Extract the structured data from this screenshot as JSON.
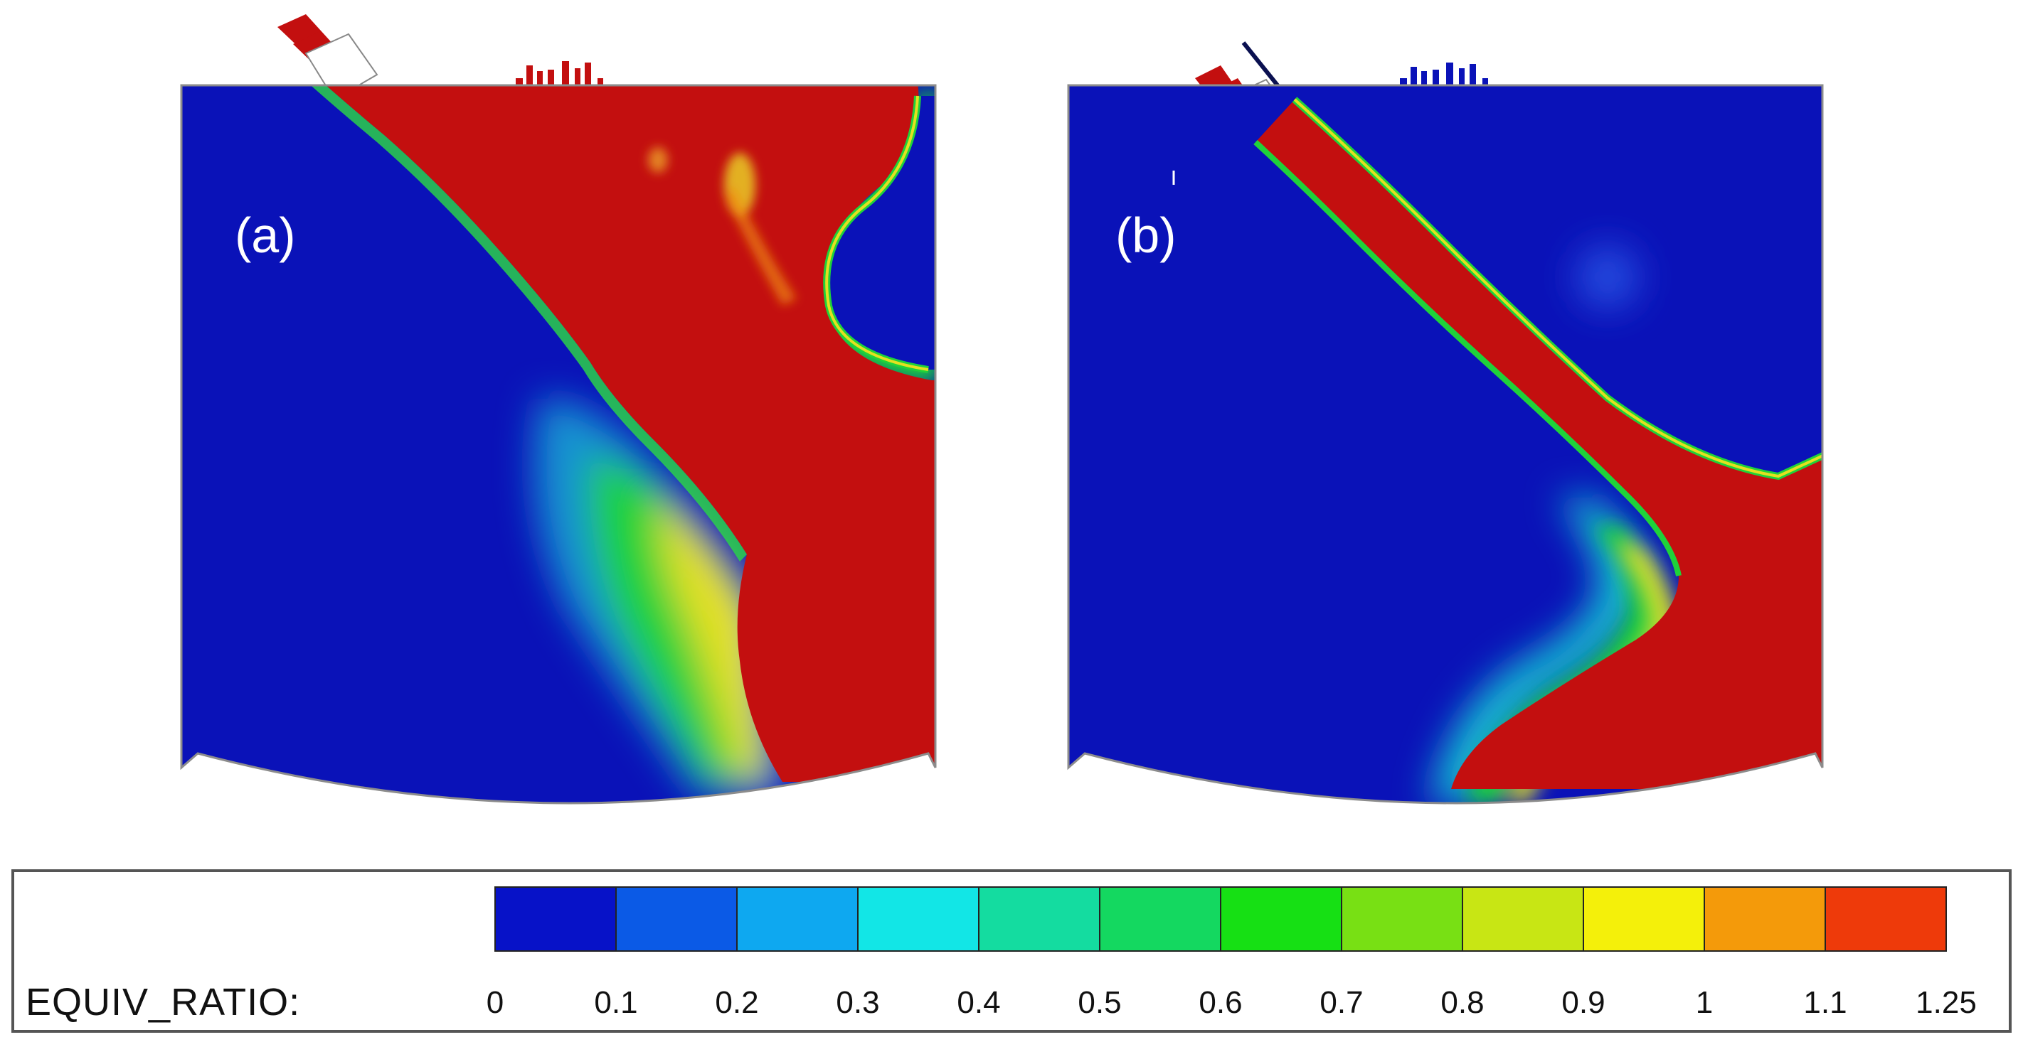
{
  "panels": [
    {
      "id": "a",
      "label": "(a)"
    },
    {
      "id": "b",
      "label": "(b)"
    }
  ],
  "legend": {
    "title": "EQUIV_RATIO:",
    "ticks": [
      "0",
      "0.1",
      "0.2",
      "0.3",
      "0.4",
      "0.5",
      "0.6",
      "0.7",
      "0.8",
      "0.9",
      "1",
      "1.1",
      "1.25"
    ]
  },
  "colors": {
    "blue": "#0a12b8",
    "red": "#c30f0f",
    "green": "#1fd23a",
    "yellow": "#e3e020",
    "orange": "#f08a10",
    "cyan": "#19d6d6",
    "legend_border": "#555555"
  }
}
